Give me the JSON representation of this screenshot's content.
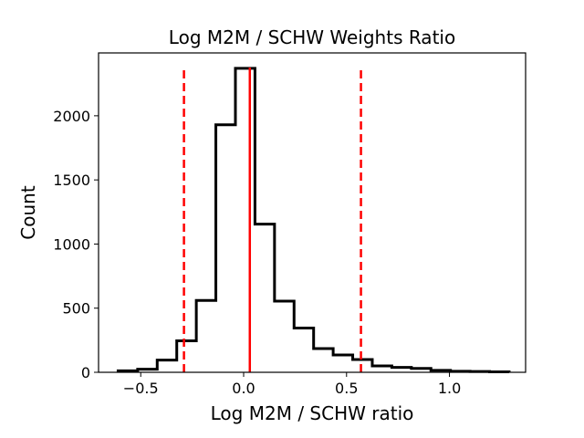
{
  "chart_data": {
    "type": "histogram",
    "title": "Log M2M / SCHW Weights Ratio",
    "xlabel": "Log M2M / SCHW ratio",
    "ylabel": "Count",
    "xlim": [
      -0.705,
      1.37
    ],
    "ylim": [
      0,
      2490
    ],
    "xticks": [
      -0.5,
      0.0,
      0.5,
      1.0
    ],
    "xtick_labels": [
      "−0.5",
      "0.0",
      "0.5",
      "1.0"
    ],
    "yticks": [
      0,
      500,
      1000,
      1500,
      2000
    ],
    "ytick_labels": [
      "0",
      "500",
      "1000",
      "1500",
      "2000"
    ],
    "bin_edges": [
      -0.61,
      -0.515,
      -0.42,
      -0.325,
      -0.23,
      -0.135,
      -0.04,
      0.055,
      0.15,
      0.245,
      0.34,
      0.435,
      0.53,
      0.625,
      0.72,
      0.815,
      0.91,
      1.005,
      1.1,
      1.195,
      1.29
    ],
    "counts": [
      12,
      24,
      95,
      245,
      560,
      1930,
      2370,
      1155,
      555,
      345,
      185,
      135,
      100,
      50,
      38,
      30,
      15,
      8,
      6,
      4
    ],
    "vlines": [
      {
        "x": -0.29,
        "style": "dashed",
        "color": "#ff0000"
      },
      {
        "x": 0.03,
        "style": "solid",
        "color": "#ff0000"
      },
      {
        "x": 0.57,
        "style": "dashed",
        "color": "#ff0000"
      }
    ],
    "hist_color": "#000000",
    "grid": false
  }
}
